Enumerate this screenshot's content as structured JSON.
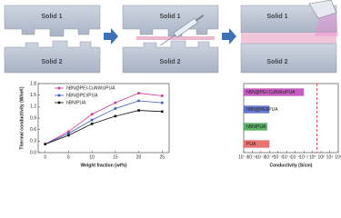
{
  "diagram": {
    "panels": [
      {
        "top": "Solid 1",
        "bottom": "Solid 2"
      },
      {
        "top": "Solid 1",
        "bottom": "Solid 2"
      },
      {
        "top": "Solid 1",
        "bottom": "Solid 2"
      }
    ]
  },
  "chart_data": [
    {
      "type": "line",
      "x_label": "Weight fraction (wt%)",
      "y_label": "Thermal conductivity (W/mK)",
      "x": [
        0,
        5,
        10,
        15,
        20,
        25
      ],
      "series": [
        {
          "name": "hBN@PEI-CuNWs/PUA",
          "color": "#d6338f",
          "values": [
            0.22,
            0.55,
            1.0,
            1.3,
            1.55,
            1.48
          ]
        },
        {
          "name": "hBN@PEI/PUA",
          "color": "#3b5bc4",
          "values": [
            0.22,
            0.5,
            0.85,
            1.15,
            1.35,
            1.3
          ]
        },
        {
          "name": "hBN/PUA",
          "color": "#111111",
          "values": [
            0.22,
            0.45,
            0.75,
            0.95,
            1.1,
            1.07
          ]
        }
      ],
      "xlim": [
        -1.5,
        26.5
      ],
      "xticks": [
        0,
        5,
        10,
        15,
        20,
        25
      ],
      "ylim": [
        0,
        1.8
      ],
      "yticks": [
        {
          "value": 0,
          "label": "0.0"
        },
        0.3,
        0.6,
        0.9,
        1.2,
        1.5,
        1.8
      ],
      "legend": "upper-left"
    },
    {
      "type": "hbar",
      "x_label": "Conductivity (S/cm)",
      "log_x": true,
      "categories": [
        "PUA",
        "hBN/PUA",
        "hBN@PEI/PUA",
        "hBN@PEI-CuNWs/PUA"
      ],
      "values": [
        1e-10,
        3e-11,
        1e-10,
        0.01
      ],
      "colors": [
        "#e35b5b",
        "#3fa34d",
        "#4b5fc4",
        "#c040b8"
      ],
      "reference_line": {
        "value": 10,
        "color": "#d62728"
      },
      "xlim": [
        1e-16,
        1000000.0
      ],
      "xticks": [
        {
          "value": 1e-16,
          "label": "10⁻¹⁶"
        },
        {
          "value": 1e-14,
          "label": "10⁻¹⁴"
        },
        {
          "value": 1e-12,
          "label": "10⁻¹²"
        },
        {
          "value": 1e-10,
          "label": "10⁻¹⁰"
        },
        {
          "value": 1e-08,
          "label": "10⁻⁸"
        },
        {
          "value": 1e-06,
          "label": "10⁻⁶"
        },
        {
          "value": 0.0001,
          "label": "10⁻⁴"
        },
        {
          "value": 0.01,
          "label": "10⁻²"
        },
        {
          "value": 1,
          "label": "10⁰"
        },
        {
          "value": 100,
          "label": "10²"
        },
        {
          "value": 10000,
          "label": "10⁴"
        },
        {
          "value": 1000000.0,
          "label": "10⁶"
        }
      ]
    }
  ]
}
